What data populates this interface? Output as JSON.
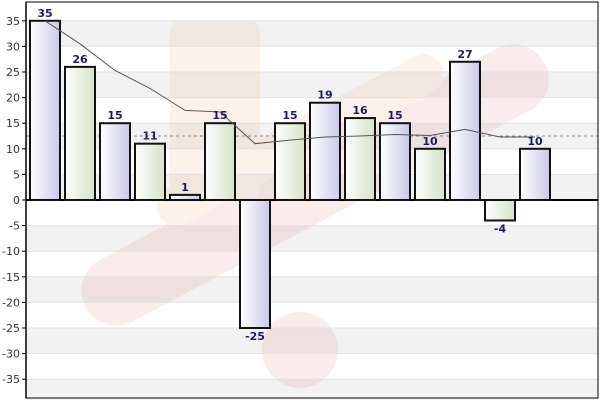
{
  "chart_data": {
    "type": "bar",
    "title": "",
    "xlabel": "",
    "ylabel": "",
    "ylim": [
      -40,
      36
    ],
    "yticks": [
      35,
      30,
      25,
      20,
      15,
      10,
      5,
      0,
      -5,
      -10,
      -15,
      -20,
      -25,
      -30,
      -35
    ],
    "categories": [
      "",
      "",
      "",
      "",
      "",
      "",
      "",
      "",
      "",
      "",
      "",
      "",
      "",
      "",
      ""
    ],
    "values": [
      35,
      26,
      15,
      11,
      1,
      15,
      -25,
      15,
      19,
      16,
      15,
      10,
      27,
      -4,
      10
    ],
    "data_labels": [
      "35",
      "26",
      "15",
      "11",
      "1",
      "15",
      "-25",
      "15",
      "19",
      "16",
      "15",
      "10",
      "27",
      "-4",
      "10"
    ],
    "line": {
      "values": [
        35,
        30.5,
        25.3,
        21.8,
        17.5,
        17.2,
        11,
        11.7,
        12.3,
        12.5,
        12.8,
        12.6,
        13.8,
        12.3,
        12.3
      ],
      "color": "#555555"
    },
    "average_line": {
      "value": 12.5,
      "color": "#888888",
      "style": "dashed"
    },
    "grid": true,
    "bar_fill_colors": [
      "#d8d8ee",
      "#dfe9d5"
    ],
    "bar_stroke_color": "#111111",
    "label_color": "#1b1b6b"
  }
}
